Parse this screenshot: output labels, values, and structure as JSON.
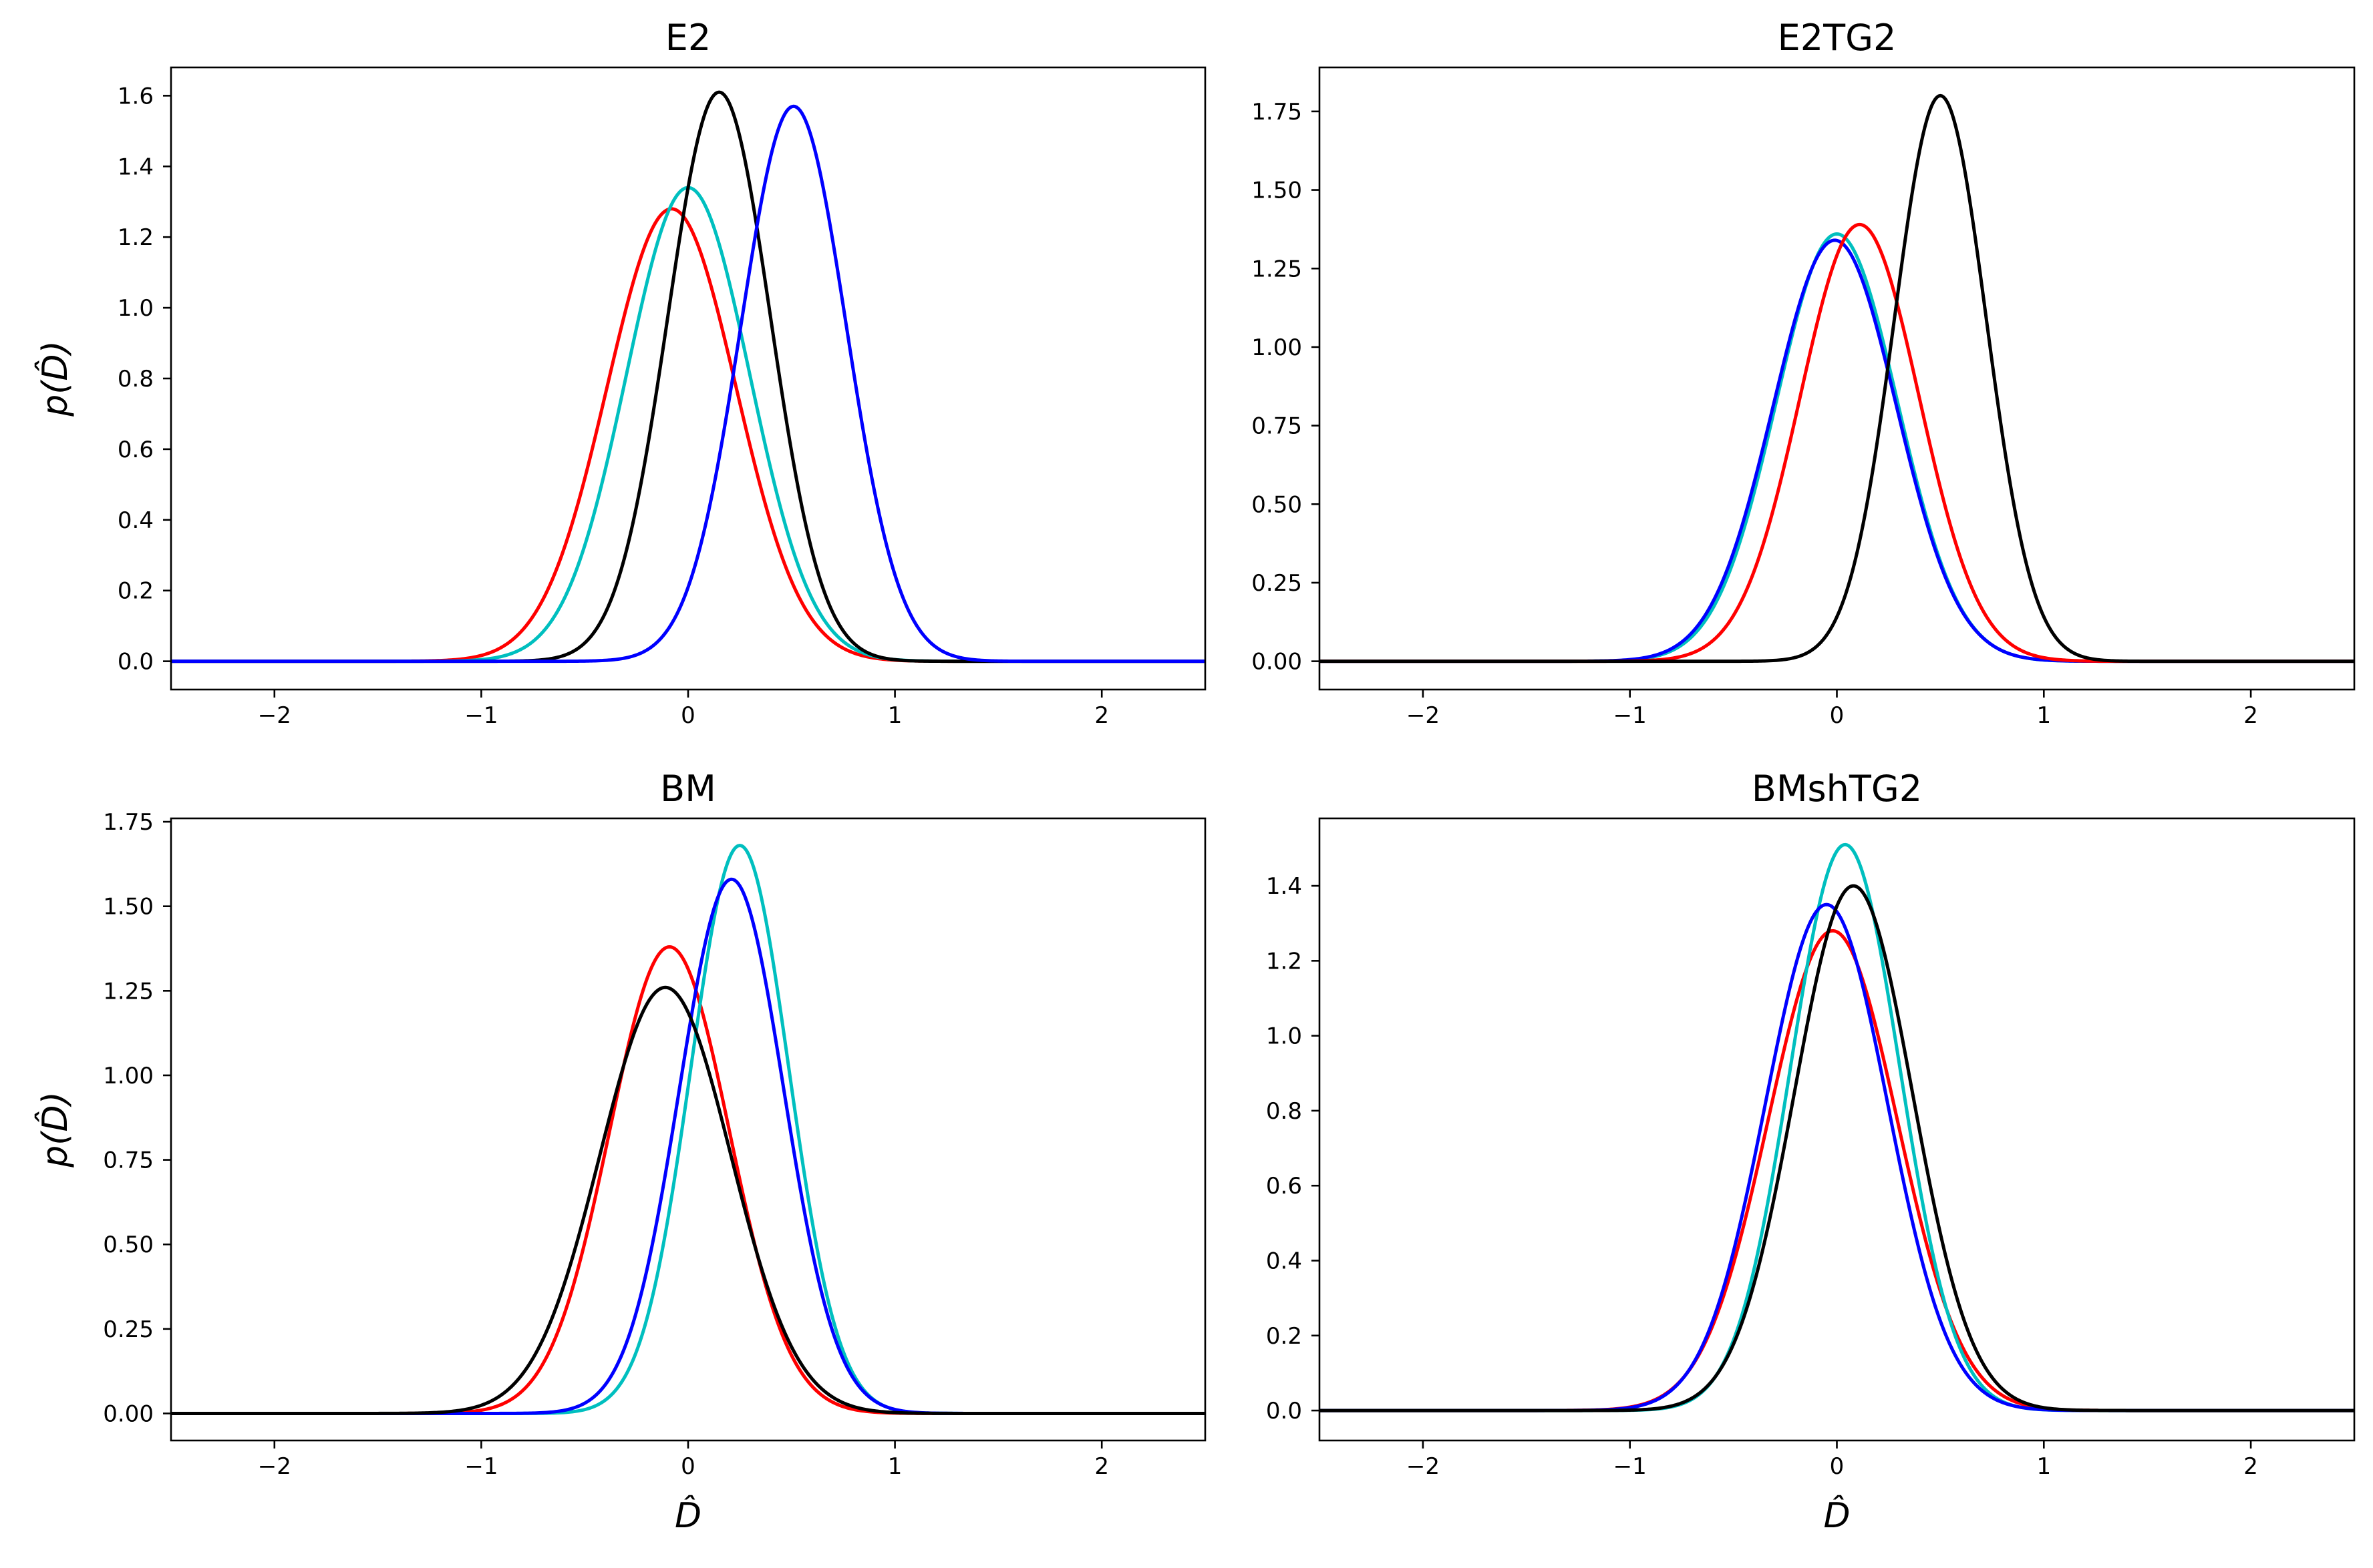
{
  "chart_data": [
    {
      "type": "line",
      "title": "E2",
      "xlabel": "",
      "ylabel": "p(D̂)",
      "xlim": [
        -2.5,
        2.5
      ],
      "ylim": [
        -0.08,
        1.68
      ],
      "xticks": [
        -2,
        -1,
        0,
        1,
        2
      ],
      "xtick_labels": [
        "−2",
        "−1",
        "0",
        "1",
        "2"
      ],
      "yticks": [
        0.0,
        0.2,
        0.4,
        0.6,
        0.8,
        1.0,
        1.2,
        1.4,
        1.6
      ],
      "ytick_labels": [
        "0.0",
        "0.2",
        "0.4",
        "0.6",
        "0.8",
        "1.0",
        "1.2",
        "1.4",
        "1.6"
      ],
      "series": [
        {
          "color": "#ff0000",
          "mean": -0.08,
          "peak": 1.28
        },
        {
          "color": "#00bfbf",
          "mean": 0.0,
          "peak": 1.34
        },
        {
          "color": "#000000",
          "mean": 0.15,
          "peak": 1.61
        },
        {
          "color": "#0000ff",
          "mean": 0.51,
          "peak": 1.57
        }
      ]
    },
    {
      "type": "line",
      "title": "E2TG2",
      "xlabel": "",
      "ylabel": "",
      "xlim": [
        -2.5,
        2.5
      ],
      "ylim": [
        -0.09,
        1.89
      ],
      "xticks": [
        -2,
        -1,
        0,
        1,
        2
      ],
      "xtick_labels": [
        "−2",
        "−1",
        "0",
        "1",
        "2"
      ],
      "yticks": [
        0.0,
        0.25,
        0.5,
        0.75,
        1.0,
        1.25,
        1.5,
        1.75
      ],
      "ytick_labels": [
        "0.00",
        "0.25",
        "0.50",
        "0.75",
        "1.00",
        "1.25",
        "1.50",
        "1.75"
      ],
      "series": [
        {
          "color": "#00bfbf",
          "mean": 0.0,
          "peak": 1.36
        },
        {
          "color": "#0000ff",
          "mean": -0.01,
          "peak": 1.34
        },
        {
          "color": "#ff0000",
          "mean": 0.11,
          "peak": 1.39
        },
        {
          "color": "#000000",
          "mean": 0.5,
          "peak": 1.8
        }
      ]
    },
    {
      "type": "line",
      "title": "BM",
      "xlabel": "D̂",
      "ylabel": "p(D̂)",
      "xlim": [
        -2.5,
        2.5
      ],
      "ylim": [
        -0.08,
        1.76
      ],
      "xticks": [
        -2,
        -1,
        0,
        1,
        2
      ],
      "xtick_labels": [
        "−2",
        "−1",
        "0",
        "1",
        "2"
      ],
      "yticks": [
        0.0,
        0.25,
        0.5,
        0.75,
        1.0,
        1.25,
        1.5,
        1.75
      ],
      "ytick_labels": [
        "0.00",
        "0.25",
        "0.50",
        "0.75",
        "1.00",
        "1.25",
        "1.50",
        "1.75"
      ],
      "series": [
        {
          "color": "#ff0000",
          "mean": -0.09,
          "peak": 1.38
        },
        {
          "color": "#00bfbf",
          "mean": 0.25,
          "peak": 1.68
        },
        {
          "color": "#0000ff",
          "mean": 0.21,
          "peak": 1.58
        },
        {
          "color": "#000000",
          "mean": -0.11,
          "peak": 1.26
        }
      ]
    },
    {
      "type": "line",
      "title": "BMshTG2",
      "xlabel": "D̂",
      "ylabel": "",
      "xlim": [
        -2.5,
        2.5
      ],
      "ylim": [
        -0.08,
        1.58
      ],
      "xticks": [
        -2,
        -1,
        0,
        1,
        2
      ],
      "xtick_labels": [
        "−2",
        "−1",
        "0",
        "1",
        "2"
      ],
      "yticks": [
        0.0,
        0.2,
        0.4,
        0.6,
        0.8,
        1.0,
        1.2,
        1.4
      ],
      "ytick_labels": [
        "0.0",
        "0.2",
        "0.4",
        "0.6",
        "0.8",
        "1.0",
        "1.2",
        "1.4"
      ],
      "series": [
        {
          "color": "#ff0000",
          "mean": -0.02,
          "peak": 1.28
        },
        {
          "color": "#00bfbf",
          "mean": 0.04,
          "peak": 1.51
        },
        {
          "color": "#0000ff",
          "mean": -0.05,
          "peak": 1.35
        },
        {
          "color": "#000000",
          "mean": 0.08,
          "peak": 1.4
        }
      ]
    }
  ]
}
